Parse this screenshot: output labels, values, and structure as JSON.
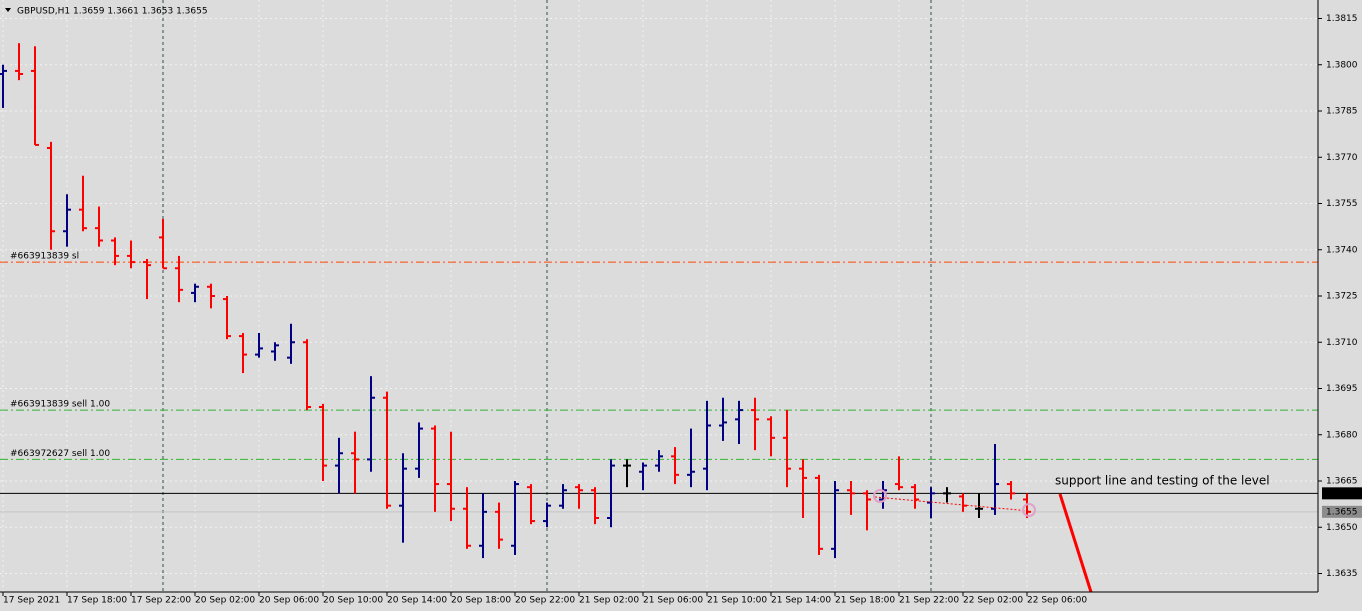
{
  "chart_data": {
    "type": "ohlc",
    "header": "GBPUSD,H1  1.3659 1.3661 1.3653 1.3655",
    "categories": [
      "17 Sep 2021",
      null,
      null,
      null,
      "17 Sep 18:00",
      null,
      null,
      null,
      "17 Sep 22:00",
      null,
      null,
      null,
      "20 Sep 02:00",
      null,
      null,
      null,
      "20 Sep 06:00",
      null,
      null,
      null,
      "20 Sep 10:00",
      null,
      null,
      null,
      "20 Sep 14:00",
      null,
      null,
      null,
      "20 Sep 18:00",
      null,
      null,
      null,
      "20 Sep 22:00",
      null,
      null,
      null,
      "21 Sep 02:00",
      null,
      null,
      null,
      "21 Sep 06:00",
      null,
      null,
      null,
      "21 Sep 10:00",
      null,
      null,
      null,
      "21 Sep 14:00",
      null,
      null,
      null,
      "21 Sep 18:00",
      null,
      null,
      null,
      "21 Sep 22:00",
      null,
      null,
      null,
      "22 Sep 02:00",
      null,
      null,
      null,
      "22 Sep 06:00"
    ],
    "open": [
      1.3797,
      1.3798,
      1.3798,
      1.3773,
      1.3746,
      1.3753,
      1.3747,
      1.3743,
      1.3738,
      1.3736,
      1.3744,
      1.3734,
      1.3726,
      1.3728,
      1.3724,
      1.3712,
      1.3706,
      1.3707,
      1.3705,
      1.371,
      1.3689,
      1.367,
      1.3674,
      1.3672,
      1.3692,
      1.3657,
      1.3669,
      1.3682,
      1.3664,
      1.3656,
      1.3644,
      1.3655,
      1.3644,
      1.3663,
      1.3652,
      1.3657,
      1.3663,
      1.3662,
      1.3653,
      1.367,
      1.3668,
      1.367,
      1.3673,
      1.3667,
      1.3669,
      1.3683,
      1.3685,
      1.3688,
      1.3685,
      1.3679,
      1.3669,
      1.3666,
      1.3643,
      1.3662,
      1.3661,
      1.3659,
      1.3664,
      1.3663,
      1.3658,
      1.3661,
      1.366,
      1.3656,
      1.3656,
      1.3664,
      1.3659
    ],
    "high": [
      1.38,
      1.3807,
      1.3806,
      1.3775,
      1.3758,
      1.3764,
      1.3754,
      1.3744,
      1.3743,
      1.3737,
      1.375,
      1.3738,
      1.3729,
      1.3729,
      1.3725,
      1.3713,
      1.3713,
      1.371,
      1.3716,
      1.3711,
      1.369,
      1.3679,
      1.3681,
      1.3699,
      1.3694,
      1.3674,
      1.3684,
      1.3683,
      1.3681,
      1.3663,
      1.3661,
      1.3658,
      1.3665,
      1.3664,
      1.3658,
      1.3664,
      1.3664,
      1.3663,
      1.3672,
      1.3672,
      1.3671,
      1.3675,
      1.3676,
      1.3682,
      1.3691,
      1.3692,
      1.3691,
      1.3692,
      1.3686,
      1.3688,
      1.3672,
      1.3667,
      1.3665,
      1.3665,
      1.3662,
      1.3665,
      1.3673,
      1.3664,
      1.3663,
      1.3663,
      1.3661,
      1.3661,
      1.3677,
      1.3665,
      1.3661
    ],
    "low": [
      1.3786,
      1.3795,
      1.3774,
      1.374,
      1.3741,
      1.3746,
      1.3741,
      1.3735,
      1.3734,
      1.3724,
      1.3734,
      1.3723,
      1.3723,
      1.3721,
      1.3711,
      1.37,
      1.3705,
      1.3704,
      1.3703,
      1.3688,
      1.3665,
      1.3661,
      1.3661,
      1.3668,
      1.3656,
      1.3645,
      1.3666,
      1.3655,
      1.3652,
      1.3643,
      1.364,
      1.3643,
      1.3641,
      1.3651,
      1.365,
      1.3656,
      1.3656,
      1.3651,
      1.365,
      1.3663,
      1.3662,
      1.3668,
      1.3664,
      1.3663,
      1.3662,
      1.3678,
      1.3677,
      1.3675,
      1.3673,
      1.3663,
      1.3653,
      1.3641,
      1.364,
      1.3654,
      1.3649,
      1.3656,
      1.3662,
      1.3656,
      1.3653,
      1.3658,
      1.3655,
      1.3653,
      1.3654,
      1.3659,
      1.3653
    ],
    "close": [
      1.3798,
      1.3797,
      1.3774,
      1.3746,
      1.3753,
      1.3747,
      1.3743,
      1.3738,
      1.3736,
      1.3735,
      1.3734,
      1.3727,
      1.3728,
      1.3725,
      1.3712,
      1.3706,
      1.3708,
      1.3709,
      1.371,
      1.3689,
      1.367,
      1.3674,
      1.3672,
      1.3692,
      1.3657,
      1.3669,
      1.3682,
      1.3664,
      1.3656,
      1.3644,
      1.3655,
      1.3646,
      1.3664,
      1.3652,
      1.3657,
      1.3662,
      1.3662,
      1.3653,
      1.367,
      1.367,
      1.367,
      1.3673,
      1.3667,
      1.3668,
      1.3683,
      1.3684,
      1.3688,
      1.3685,
      1.3679,
      1.3669,
      1.3666,
      1.3643,
      1.3662,
      1.3661,
      1.3659,
      1.3662,
      1.3663,
      1.3659,
      1.3661,
      1.3661,
      1.3657,
      1.3656,
      1.3664,
      1.3661,
      1.3655
    ],
    "up_color": "#000080",
    "down_color": "#ff0000",
    "doji_color": "#000000",
    "ylim": [
      1.3629,
      1.3821
    ],
    "yticks": [
      1.3815,
      {
        "value": 1.38,
        "label": "1.3800"
      },
      1.3785,
      {
        "value": 1.377,
        "label": "1.3770"
      },
      1.3755,
      {
        "value": 1.374,
        "label": "1.3740"
      },
      1.3725,
      {
        "value": 1.371,
        "label": "1.3710"
      },
      1.3695,
      {
        "value": 1.368,
        "label": "1.3680"
      },
      1.3665,
      {
        "value": 1.365,
        "label": "1.3650"
      },
      1.3635
    ],
    "grid": true,
    "levels": [
      {
        "label": "#663913839 sl",
        "value": 1.3736,
        "color": "#ff4500"
      },
      {
        "label": "#663913839 sell 1.00",
        "value": 1.3688,
        "color": "#32b432"
      },
      {
        "label": "#663972627 sell 1.00",
        "value": 1.3672,
        "color": "#32b432"
      }
    ],
    "price_lines": [
      {
        "value": 1.3661,
        "color": "#000000",
        "box": "#000000",
        "text": "#ffffff"
      },
      {
        "value": 1.3655,
        "color": "#c4c4c4",
        "box": "#8c8c8c",
        "text": "#ffffff"
      }
    ],
    "annotation": "support line and testing of the level"
  }
}
